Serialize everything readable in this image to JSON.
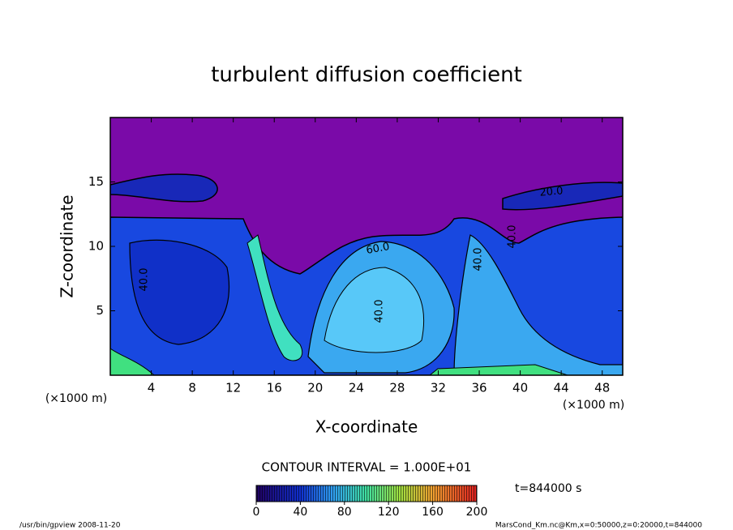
{
  "chart_data": {
    "type": "contour",
    "title": "turbulent diffusion coefficient",
    "xlabel": "X-coordinate",
    "ylabel": "Z-coordinate",
    "x_unit": "(×1000 m)",
    "y_unit": "(×1000 m)",
    "xlim": [
      0,
      50
    ],
    "xticks": [
      4,
      8,
      12,
      16,
      20,
      24,
      28,
      32,
      36,
      40,
      44,
      48
    ],
    "ylim": [
      0,
      20
    ],
    "yticks": [
      5,
      10,
      15
    ],
    "contour_labels": [
      "40.0",
      "60.0",
      "40.0",
      "40.0",
      "40.0",
      "20.0"
    ],
    "contour_interval": "CONTOUR INTERVAL = 1.000E+01",
    "colorbar": {
      "lim": [
        0,
        200
      ],
      "ticks": [
        0,
        40,
        80,
        120,
        160,
        200
      ]
    },
    "time_label": "t=844000 s",
    "footer_left": "/usr/bin/gpview  2008-11-20",
    "footer_right": "MarsCond_Km.nc@Km,x=0:50000,z=0:20000,t=844000"
  }
}
